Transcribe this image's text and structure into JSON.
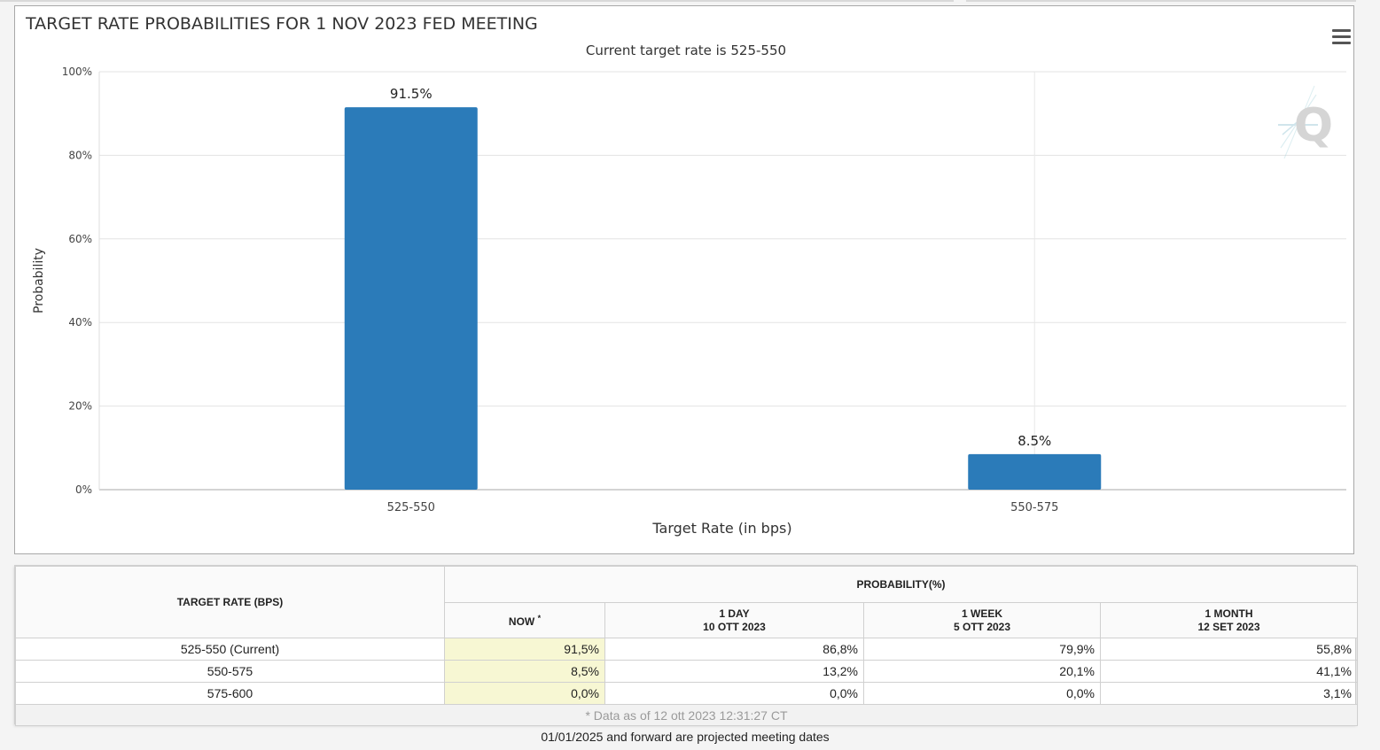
{
  "chart_data": {
    "type": "bar",
    "title": "TARGET RATE PROBABILITIES FOR 1 NOV 2023 FED MEETING",
    "subtitle": "Current target rate is 525-550",
    "xlabel": "Target Rate (in bps)",
    "ylabel": "Probability",
    "categories": [
      "525-550",
      "550-575"
    ],
    "values": [
      91.5,
      8.5
    ],
    "data_labels": [
      "91.5%",
      "8.5%"
    ],
    "ylim": [
      0,
      100
    ],
    "yticks": [
      "0%",
      "20%",
      "40%",
      "60%",
      "80%",
      "100%"
    ],
    "grid": true,
    "color": "#2b7bb9"
  },
  "watermark": "Q",
  "table": {
    "rate_header": "TARGET RATE (BPS)",
    "prob_header": "PROBABILITY(%)",
    "columns": [
      {
        "label": "NOW",
        "sup": "*",
        "date": ""
      },
      {
        "label": "1 DAY",
        "date": "10 OTT 2023"
      },
      {
        "label": "1 WEEK",
        "date": "5 OTT 2023"
      },
      {
        "label": "1 MONTH",
        "date": "12 SET 2023"
      }
    ],
    "rows": [
      {
        "rate": "525-550 (Current)",
        "now": "91,5%",
        "day": "86,8%",
        "week": "79,9%",
        "month": "55,8%"
      },
      {
        "rate": "550-575",
        "now": "8,5%",
        "day": "13,2%",
        "week": "20,1%",
        "month": "41,1%"
      },
      {
        "rate": "575-600",
        "now": "0,0%",
        "day": "0,0%",
        "week": "0,0%",
        "month": "3,1%"
      }
    ],
    "footer": "* Data as of 12 ott 2023 12:31:27 CT"
  },
  "footnote": "01/01/2025 and forward are projected meeting dates"
}
